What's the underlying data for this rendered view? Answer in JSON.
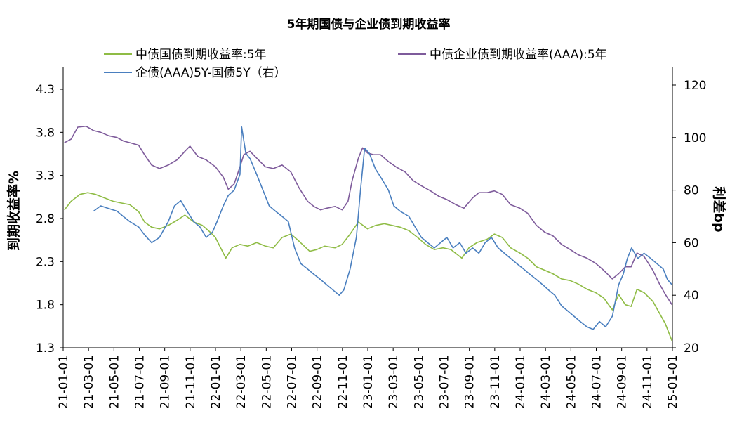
{
  "chart_data": {
    "type": "line",
    "title": "5年期国债与企业债到期收益率",
    "ylabel_left": "到期收益率%",
    "ylabel_right": "利差bp",
    "y_left": {
      "ticks": [
        "1.3",
        "1.8",
        "2.3",
        "2.8",
        "3.3",
        "3.8",
        "4.3"
      ],
      "range": [
        1.3,
        4.3
      ]
    },
    "y_right": {
      "ticks": [
        "20",
        "40",
        "60",
        "80",
        "100",
        "120"
      ],
      "range": [
        20,
        120
      ]
    },
    "x_ticks": [
      "21-01-01",
      "21-03-01",
      "21-05-01",
      "21-07-01",
      "21-09-01",
      "21-11-01",
      "22-01-01",
      "22-03-01",
      "22-05-01",
      "22-07-01",
      "22-09-01",
      "22-11-01",
      "23-01-01",
      "23-03-01",
      "23-05-01",
      "23-07-01",
      "23-09-01",
      "23-11-01",
      "24-01-01",
      "24-03-01",
      "24-05-01",
      "24-07-01",
      "24-09-01",
      "24-11-01",
      "25-01-01"
    ],
    "x_range": [
      "2021-01-01",
      "2025-01-01"
    ],
    "legend_position": "top",
    "series": [
      {
        "name": "中债国债到期收益率:5年",
        "axis": "left",
        "color": "#8fbc45",
        "points": [
          [
            "2021-01-04",
            2.9
          ],
          [
            "2021-01-20",
            3.0
          ],
          [
            "2021-02-10",
            3.08
          ],
          [
            "2021-03-01",
            3.1
          ],
          [
            "2021-03-20",
            3.08
          ],
          [
            "2021-04-10",
            3.04
          ],
          [
            "2021-05-01",
            3.0
          ],
          [
            "2021-05-20",
            2.98
          ],
          [
            "2021-06-10",
            2.96
          ],
          [
            "2021-07-01",
            2.88
          ],
          [
            "2021-07-15",
            2.76
          ],
          [
            "2021-08-01",
            2.7
          ],
          [
            "2021-08-20",
            2.68
          ],
          [
            "2021-09-10",
            2.72
          ],
          [
            "2021-10-01",
            2.78
          ],
          [
            "2021-10-20",
            2.84
          ],
          [
            "2021-11-10",
            2.76
          ],
          [
            "2021-12-01",
            2.72
          ],
          [
            "2021-12-20",
            2.64
          ],
          [
            "2022-01-01",
            2.58
          ],
          [
            "2022-01-20",
            2.4
          ],
          [
            "2022-01-26",
            2.34
          ],
          [
            "2022-02-10",
            2.46
          ],
          [
            "2022-03-01",
            2.5
          ],
          [
            "2022-03-20",
            2.48
          ],
          [
            "2022-04-10",
            2.52
          ],
          [
            "2022-05-01",
            2.48
          ],
          [
            "2022-05-20",
            2.46
          ],
          [
            "2022-06-10",
            2.58
          ],
          [
            "2022-07-01",
            2.62
          ],
          [
            "2022-07-20",
            2.54
          ],
          [
            "2022-08-15",
            2.42
          ],
          [
            "2022-09-01",
            2.44
          ],
          [
            "2022-09-20",
            2.48
          ],
          [
            "2022-10-15",
            2.46
          ],
          [
            "2022-11-01",
            2.5
          ],
          [
            "2022-11-20",
            2.62
          ],
          [
            "2022-12-10",
            2.76
          ],
          [
            "2023-01-01",
            2.68
          ],
          [
            "2023-01-20",
            2.72
          ],
          [
            "2023-02-10",
            2.74
          ],
          [
            "2023-03-01",
            2.72
          ],
          [
            "2023-03-20",
            2.7
          ],
          [
            "2023-04-10",
            2.66
          ],
          [
            "2023-05-01",
            2.58
          ],
          [
            "2023-05-20",
            2.5
          ],
          [
            "2023-06-10",
            2.44
          ],
          [
            "2023-07-01",
            2.46
          ],
          [
            "2023-07-20",
            2.44
          ],
          [
            "2023-08-15",
            2.34
          ],
          [
            "2023-09-01",
            2.46
          ],
          [
            "2023-09-20",
            2.52
          ],
          [
            "2023-10-15",
            2.56
          ],
          [
            "2023-11-01",
            2.62
          ],
          [
            "2023-11-20",
            2.58
          ],
          [
            "2023-12-10",
            2.46
          ],
          [
            "2024-01-01",
            2.4
          ],
          [
            "2024-01-20",
            2.34
          ],
          [
            "2024-02-10",
            2.24
          ],
          [
            "2024-03-01",
            2.2
          ],
          [
            "2024-03-20",
            2.16
          ],
          [
            "2024-04-10",
            2.1
          ],
          [
            "2024-05-01",
            2.08
          ],
          [
            "2024-05-20",
            2.04
          ],
          [
            "2024-06-10",
            1.98
          ],
          [
            "2024-07-01",
            1.94
          ],
          [
            "2024-07-20",
            1.88
          ],
          [
            "2024-08-10",
            1.74
          ],
          [
            "2024-08-25",
            1.92
          ],
          [
            "2024-09-10",
            1.8
          ],
          [
            "2024-09-24",
            1.78
          ],
          [
            "2024-10-08",
            1.98
          ],
          [
            "2024-10-25",
            1.94
          ],
          [
            "2024-11-15",
            1.84
          ],
          [
            "2024-12-01",
            1.7
          ],
          [
            "2024-12-15",
            1.58
          ],
          [
            "2024-12-31",
            1.38
          ]
        ]
      },
      {
        "name": "中债企业债到期收益率(AAA):5年",
        "axis": "left",
        "color": "#7e5b9b",
        "points": [
          [
            "2021-01-04",
            3.68
          ],
          [
            "2021-01-20",
            3.72
          ],
          [
            "2021-02-05",
            3.86
          ],
          [
            "2021-02-25",
            3.87
          ],
          [
            "2021-03-15",
            3.82
          ],
          [
            "2021-04-01",
            3.8
          ],
          [
            "2021-04-20",
            3.76
          ],
          [
            "2021-05-10",
            3.74
          ],
          [
            "2021-05-25",
            3.7
          ],
          [
            "2021-06-10",
            3.68
          ],
          [
            "2021-07-01",
            3.65
          ],
          [
            "2021-07-15",
            3.54
          ],
          [
            "2021-08-01",
            3.42
          ],
          [
            "2021-08-20",
            3.38
          ],
          [
            "2021-09-10",
            3.42
          ],
          [
            "2021-10-01",
            3.48
          ],
          [
            "2021-10-20",
            3.58
          ],
          [
            "2021-11-01",
            3.64
          ],
          [
            "2021-11-20",
            3.52
          ],
          [
            "2021-12-10",
            3.48
          ],
          [
            "2022-01-01",
            3.4
          ],
          [
            "2022-01-20",
            3.28
          ],
          [
            "2022-02-01",
            3.14
          ],
          [
            "2022-02-15",
            3.2
          ],
          [
            "2022-03-01",
            3.4
          ],
          [
            "2022-03-10",
            3.54
          ],
          [
            "2022-03-25",
            3.58
          ],
          [
            "2022-04-10",
            3.5
          ],
          [
            "2022-05-01",
            3.4
          ],
          [
            "2022-05-20",
            3.38
          ],
          [
            "2022-06-10",
            3.42
          ],
          [
            "2022-07-01",
            3.34
          ],
          [
            "2022-07-20",
            3.16
          ],
          [
            "2022-08-10",
            3.0
          ],
          [
            "2022-08-25",
            2.94
          ],
          [
            "2022-09-10",
            2.9
          ],
          [
            "2022-09-25",
            2.92
          ],
          [
            "2022-10-15",
            2.94
          ],
          [
            "2022-11-01",
            2.9
          ],
          [
            "2022-11-15",
            3.0
          ],
          [
            "2022-11-25",
            3.24
          ],
          [
            "2022-12-10",
            3.5
          ],
          [
            "2022-12-20",
            3.62
          ],
          [
            "2023-01-01",
            3.56
          ],
          [
            "2023-01-15",
            3.54
          ],
          [
            "2023-02-01",
            3.54
          ],
          [
            "2023-02-20",
            3.46
          ],
          [
            "2023-03-10",
            3.4
          ],
          [
            "2023-04-01",
            3.34
          ],
          [
            "2023-04-20",
            3.24
          ],
          [
            "2023-05-10",
            3.18
          ],
          [
            "2023-06-01",
            3.12
          ],
          [
            "2023-06-20",
            3.06
          ],
          [
            "2023-07-10",
            3.02
          ],
          [
            "2023-08-01",
            2.96
          ],
          [
            "2023-08-20",
            2.92
          ],
          [
            "2023-09-10",
            3.04
          ],
          [
            "2023-09-25",
            3.1
          ],
          [
            "2023-10-15",
            3.1
          ],
          [
            "2023-11-01",
            3.12
          ],
          [
            "2023-11-20",
            3.08
          ],
          [
            "2023-12-10",
            2.96
          ],
          [
            "2024-01-01",
            2.92
          ],
          [
            "2024-01-20",
            2.86
          ],
          [
            "2024-02-10",
            2.72
          ],
          [
            "2024-03-01",
            2.64
          ],
          [
            "2024-03-20",
            2.6
          ],
          [
            "2024-04-10",
            2.5
          ],
          [
            "2024-05-01",
            2.44
          ],
          [
            "2024-05-20",
            2.38
          ],
          [
            "2024-06-10",
            2.34
          ],
          [
            "2024-07-01",
            2.28
          ],
          [
            "2024-07-20",
            2.2
          ],
          [
            "2024-08-10",
            2.1
          ],
          [
            "2024-08-25",
            2.16
          ],
          [
            "2024-09-10",
            2.24
          ],
          [
            "2024-09-24",
            2.24
          ],
          [
            "2024-10-08",
            2.4
          ],
          [
            "2024-10-25",
            2.36
          ],
          [
            "2024-11-15",
            2.2
          ],
          [
            "2024-12-01",
            2.04
          ],
          [
            "2024-12-15",
            1.92
          ],
          [
            "2024-12-31",
            1.8
          ]
        ]
      },
      {
        "name": "企债(AAA)5Y-国债5Y（右）",
        "axis": "right",
        "color": "#4a7fbf",
        "points": [
          [
            "2021-03-15",
            72
          ],
          [
            "2021-04-01",
            74
          ],
          [
            "2021-04-20",
            73
          ],
          [
            "2021-05-10",
            72
          ],
          [
            "2021-05-25",
            70
          ],
          [
            "2021-06-10",
            68
          ],
          [
            "2021-07-01",
            66
          ],
          [
            "2021-07-15",
            63
          ],
          [
            "2021-08-01",
            60
          ],
          [
            "2021-08-20",
            62
          ],
          [
            "2021-09-10",
            68
          ],
          [
            "2021-09-25",
            74
          ],
          [
            "2021-10-10",
            76
          ],
          [
            "2021-10-25",
            72
          ],
          [
            "2021-11-10",
            68
          ],
          [
            "2021-11-25",
            66
          ],
          [
            "2021-12-10",
            62
          ],
          [
            "2021-12-25",
            64
          ],
          [
            "2022-01-05",
            68
          ],
          [
            "2022-01-20",
            74
          ],
          [
            "2022-02-01",
            78
          ],
          [
            "2022-02-15",
            80
          ],
          [
            "2022-03-01",
            86
          ],
          [
            "2022-03-05",
            104
          ],
          [
            "2022-03-15",
            94
          ],
          [
            "2022-03-25",
            92
          ],
          [
            "2022-04-10",
            86
          ],
          [
            "2022-04-25",
            80
          ],
          [
            "2022-05-10",
            74
          ],
          [
            "2022-05-25",
            72
          ],
          [
            "2022-06-10",
            70
          ],
          [
            "2022-06-25",
            68
          ],
          [
            "2022-07-10",
            58
          ],
          [
            "2022-07-25",
            52
          ],
          [
            "2022-08-10",
            50
          ],
          [
            "2022-08-25",
            48
          ],
          [
            "2022-09-10",
            46
          ],
          [
            "2022-09-25",
            44
          ],
          [
            "2022-10-10",
            42
          ],
          [
            "2022-10-25",
            40
          ],
          [
            "2022-11-05",
            42
          ],
          [
            "2022-11-20",
            50
          ],
          [
            "2022-12-05",
            62
          ],
          [
            "2022-12-15",
            80
          ],
          [
            "2022-12-25",
            96
          ],
          [
            "2023-01-05",
            94
          ],
          [
            "2023-01-20",
            88
          ],
          [
            "2023-02-05",
            84
          ],
          [
            "2023-02-20",
            80
          ],
          [
            "2023-03-05",
            74
          ],
          [
            "2023-03-20",
            72
          ],
          [
            "2023-04-10",
            70
          ],
          [
            "2023-04-25",
            66
          ],
          [
            "2023-05-10",
            62
          ],
          [
            "2023-05-25",
            60
          ],
          [
            "2023-06-10",
            58
          ],
          [
            "2023-06-25",
            60
          ],
          [
            "2023-07-10",
            62
          ],
          [
            "2023-07-25",
            58
          ],
          [
            "2023-08-10",
            60
          ],
          [
            "2023-08-25",
            56
          ],
          [
            "2023-09-10",
            58
          ],
          [
            "2023-09-25",
            56
          ],
          [
            "2023-10-10",
            60
          ],
          [
            "2023-10-25",
            62
          ],
          [
            "2023-11-10",
            58
          ],
          [
            "2023-11-25",
            56
          ],
          [
            "2023-12-10",
            54
          ],
          [
            "2023-12-25",
            52
          ],
          [
            "2024-01-10",
            50
          ],
          [
            "2024-01-25",
            48
          ],
          [
            "2024-02-10",
            46
          ],
          [
            "2024-02-25",
            44
          ],
          [
            "2024-03-10",
            42
          ],
          [
            "2024-03-25",
            40
          ],
          [
            "2024-04-10",
            36
          ],
          [
            "2024-04-25",
            34
          ],
          [
            "2024-05-10",
            32
          ],
          [
            "2024-05-25",
            30
          ],
          [
            "2024-06-10",
            28
          ],
          [
            "2024-06-25",
            27
          ],
          [
            "2024-07-10",
            30
          ],
          [
            "2024-07-25",
            28
          ],
          [
            "2024-08-10",
            32
          ],
          [
            "2024-08-25",
            44
          ],
          [
            "2024-09-05",
            48
          ],
          [
            "2024-09-15",
            54
          ],
          [
            "2024-09-25",
            58
          ],
          [
            "2024-10-10",
            54
          ],
          [
            "2024-10-25",
            56
          ],
          [
            "2024-11-10",
            54
          ],
          [
            "2024-11-25",
            52
          ],
          [
            "2024-12-10",
            50
          ],
          [
            "2024-12-20",
            46
          ],
          [
            "2024-12-31",
            44
          ]
        ]
      }
    ]
  }
}
